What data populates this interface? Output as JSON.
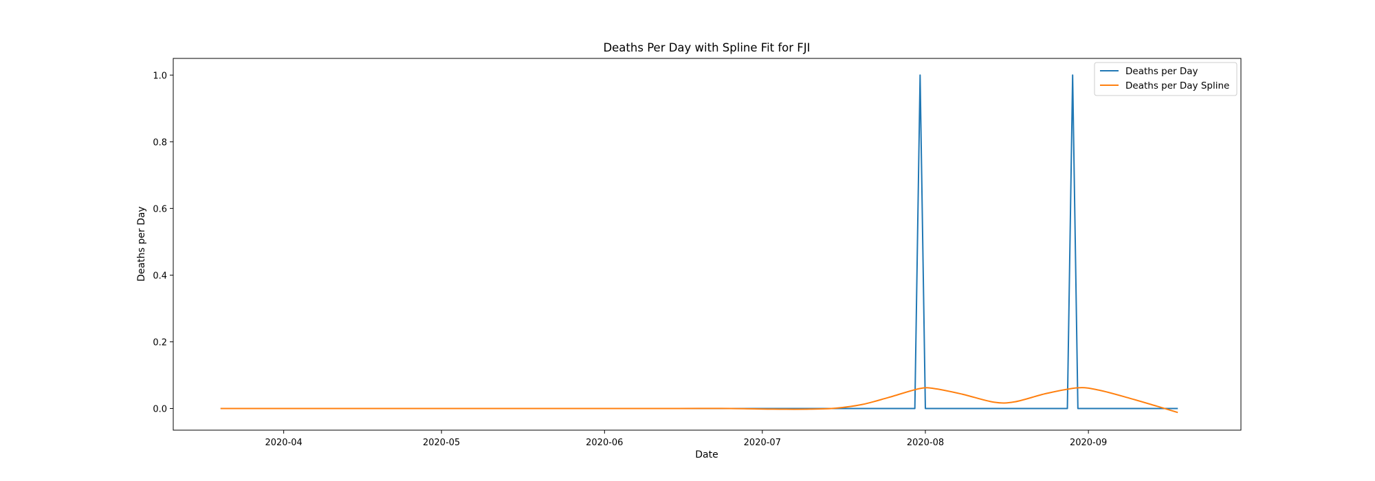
{
  "chart_data": {
    "type": "line",
    "title": "Deaths Per Day with Spline Fit for FJI",
    "xlabel": "Date",
    "ylabel": "Deaths per Day",
    "xlim": [
      "2020-03-11",
      "2020-09-30"
    ],
    "ylim": [
      -0.065,
      1.05
    ],
    "x_ticks": [
      "2020-04",
      "2020-05",
      "2020-06",
      "2020-07",
      "2020-08",
      "2020-09"
    ],
    "y_ticks": [
      "0.0",
      "0.2",
      "0.4",
      "0.6",
      "0.8",
      "1.0"
    ],
    "grid": false,
    "legend_position": "top-right",
    "series": [
      {
        "name": "Deaths per Day",
        "color": "#1f77b4",
        "points": [
          [
            "2020-03-20",
            0
          ],
          [
            "2020-07-30",
            0
          ],
          [
            "2020-07-31",
            1
          ],
          [
            "2020-08-01",
            0
          ],
          [
            "2020-08-28",
            0
          ],
          [
            "2020-08-29",
            1
          ],
          [
            "2020-08-30",
            0
          ],
          [
            "2020-09-18",
            0
          ]
        ]
      },
      {
        "name": "Deaths per Day Spline",
        "color": "#ff7f0e",
        "points": [
          [
            "2020-03-20",
            0
          ],
          [
            "2020-05-01",
            0
          ],
          [
            "2020-06-15",
            0
          ],
          [
            "2020-06-25",
            0
          ],
          [
            "2020-07-03",
            -0.002
          ],
          [
            "2020-07-10",
            -0.002
          ],
          [
            "2020-07-15",
            0.001
          ],
          [
            "2020-07-20",
            0.012
          ],
          [
            "2020-07-25",
            0.033
          ],
          [
            "2020-07-31",
            0.06
          ],
          [
            "2020-08-03",
            0.059
          ],
          [
            "2020-08-08",
            0.043
          ],
          [
            "2020-08-14",
            0.019
          ],
          [
            "2020-08-18",
            0.02
          ],
          [
            "2020-08-24",
            0.045
          ],
          [
            "2020-08-30",
            0.062
          ],
          [
            "2020-09-03",
            0.055
          ],
          [
            "2020-09-09",
            0.03
          ],
          [
            "2020-09-14",
            0.007
          ],
          [
            "2020-09-18",
            -0.012
          ]
        ]
      }
    ]
  }
}
